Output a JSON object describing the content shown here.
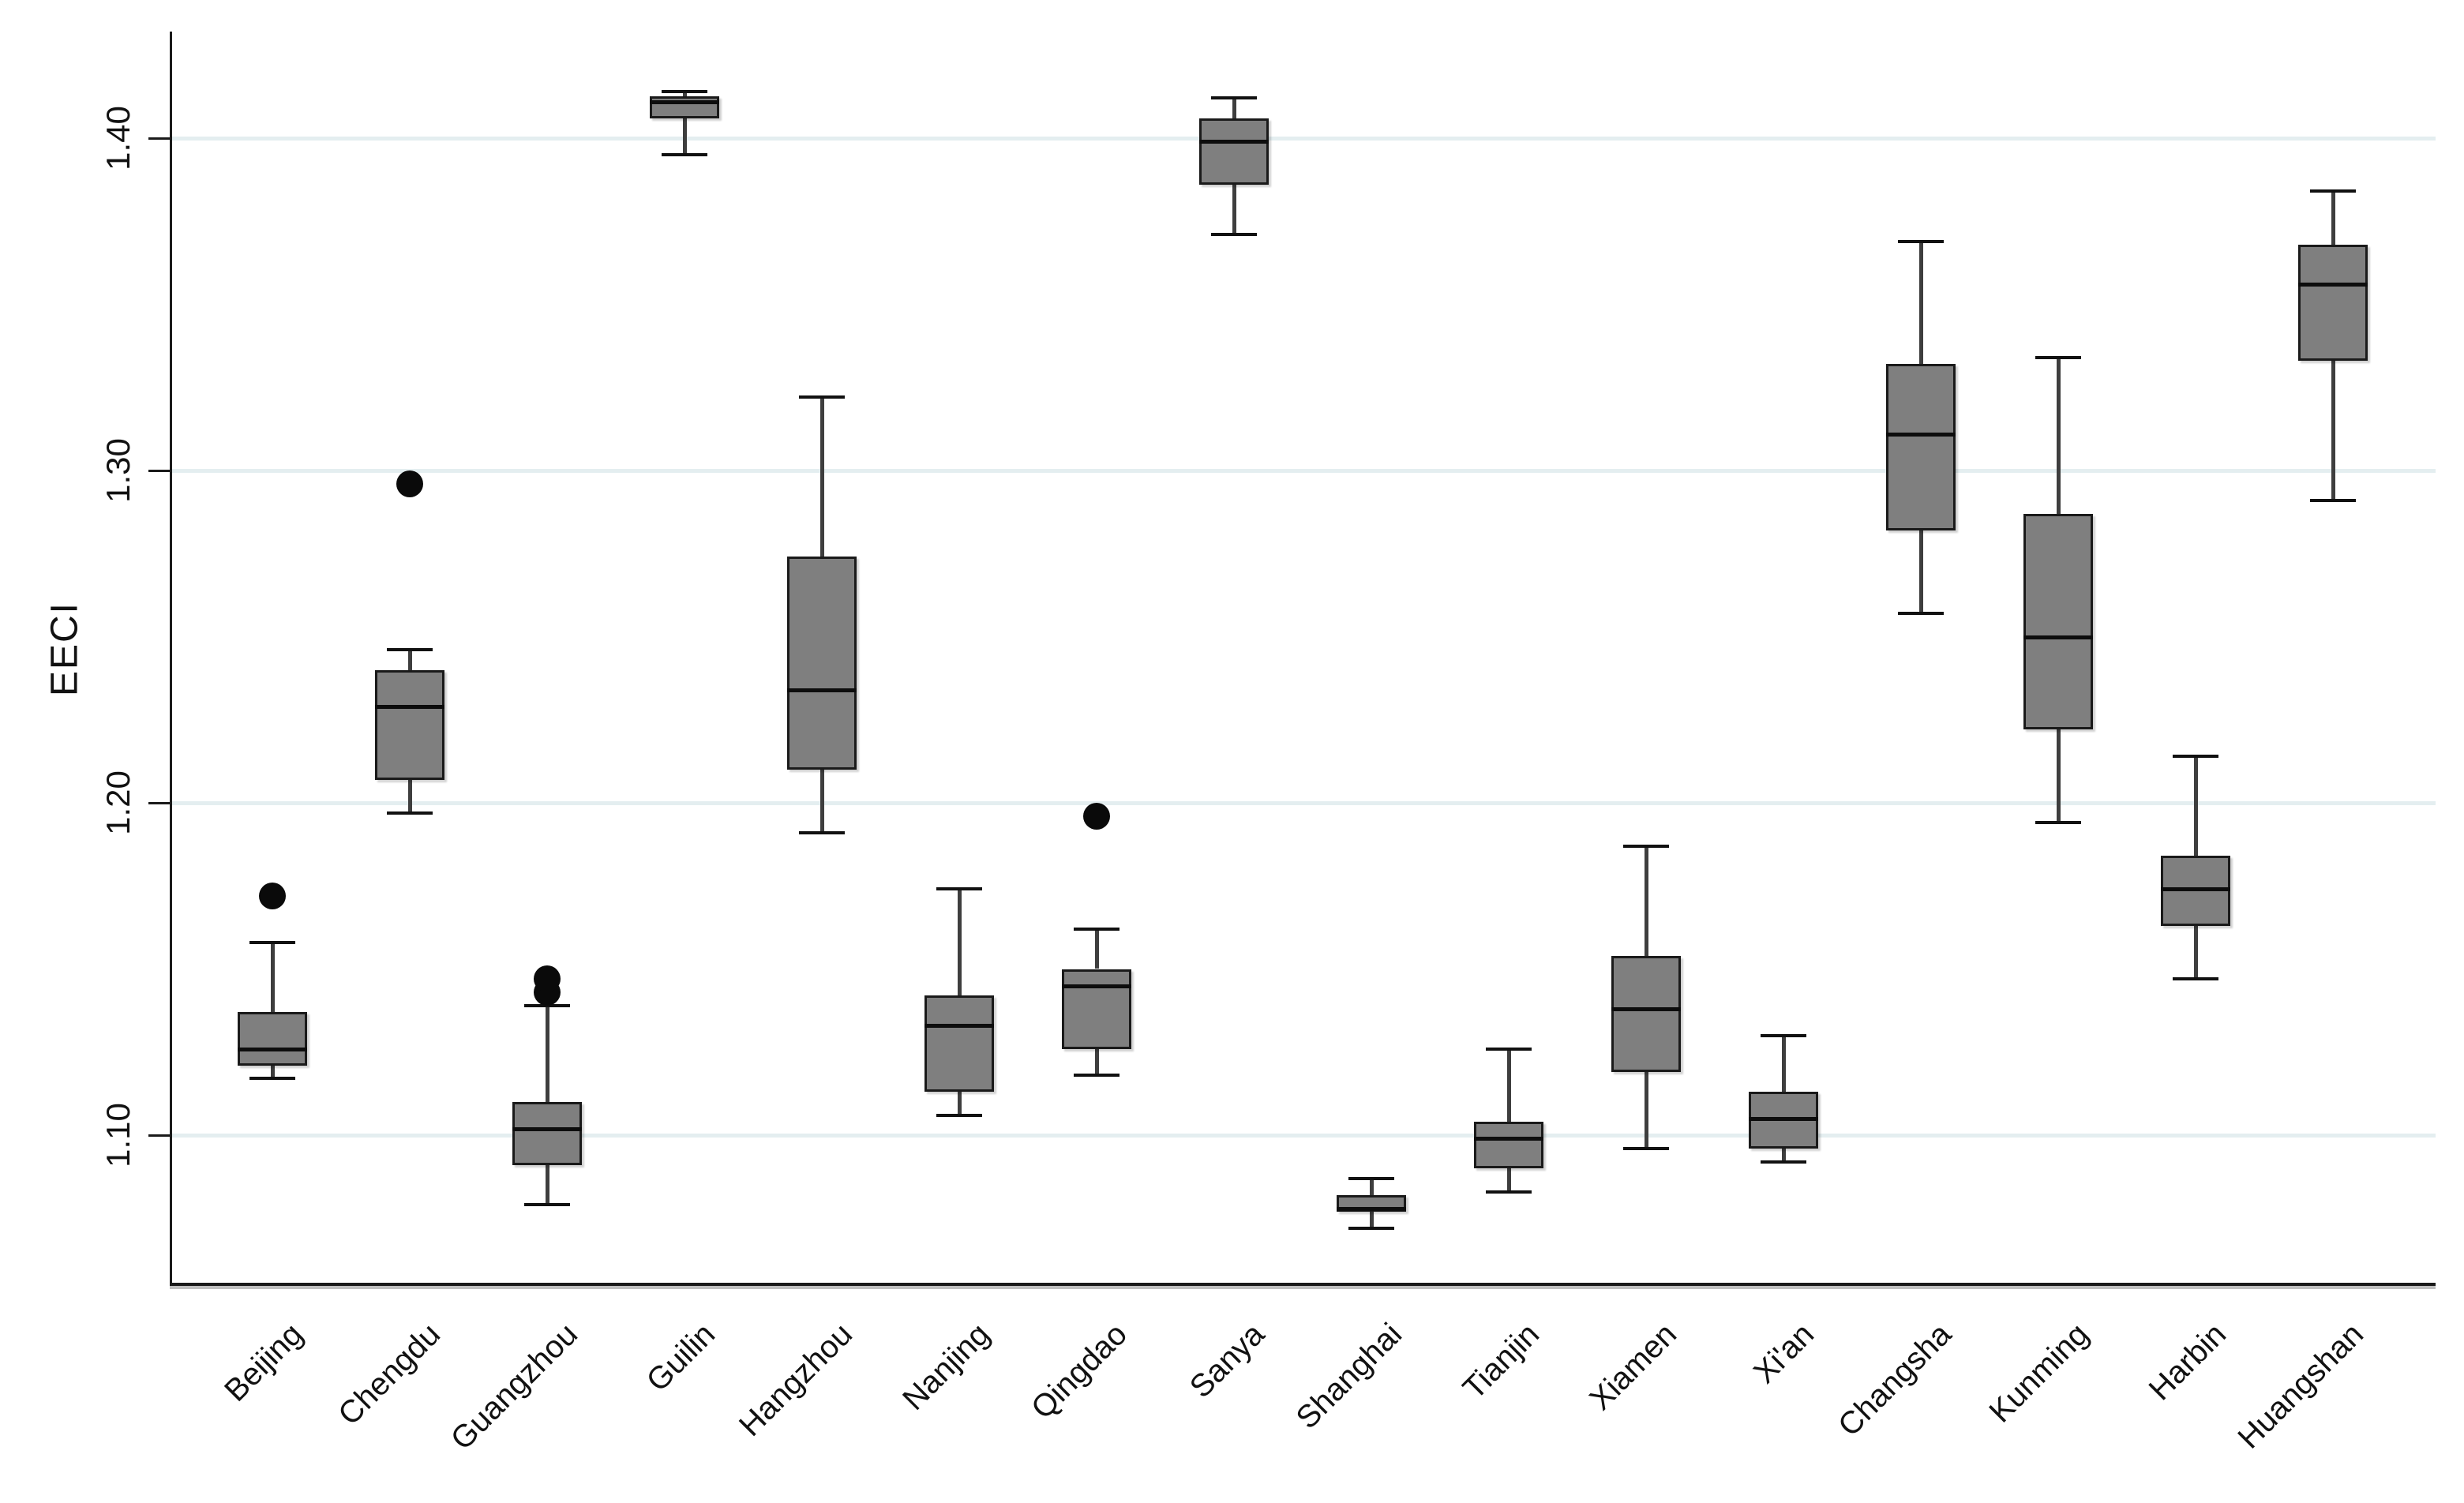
{
  "figure": {
    "background": "#ffffff"
  },
  "chart_data": {
    "type": "box",
    "title": "",
    "xlabel": "",
    "ylabel": "EECI",
    "legend": "none",
    "grid": "horizontal",
    "ylim": [
      1.055,
      1.432
    ],
    "yticks": [
      1.1,
      1.2,
      1.3,
      1.4
    ],
    "ytick_labels": [
      "1.10",
      "1.20",
      "1.30",
      "1.40"
    ],
    "categories": [
      "Beijing",
      "Chengdu",
      "Guangzhou",
      "Guilin",
      "Hangzhou",
      "Nanjing",
      "Qingdao",
      "Sanya",
      "Shanghai",
      "Tianjin",
      "Xiamen",
      "Xi'an",
      "Changsha",
      "Kunming",
      "Harbin",
      "Huangshan"
    ],
    "series": [
      {
        "name": "Beijing",
        "whisker_low": 1.117,
        "q1": 1.121,
        "median": 1.126,
        "q3": 1.137,
        "whisker_high": 1.158,
        "outliers": [
          1.172
        ]
      },
      {
        "name": "Chengdu",
        "whisker_low": 1.197,
        "q1": 1.207,
        "median": 1.229,
        "q3": 1.24,
        "whisker_high": 1.246,
        "outliers": [
          1.296
        ]
      },
      {
        "name": "Guangzhou",
        "whisker_low": 1.079,
        "q1": 1.091,
        "median": 1.102,
        "q3": 1.11,
        "whisker_high": 1.139,
        "outliers": [
          1.143,
          1.147
        ]
      },
      {
        "name": "Guilin",
        "whisker_low": 1.395,
        "q1": 1.406,
        "median": 1.411,
        "q3": 1.4125,
        "whisker_high": 1.414,
        "outliers": []
      },
      {
        "name": "Hangzhou",
        "whisker_low": 1.191,
        "q1": 1.21,
        "median": 1.234,
        "q3": 1.274,
        "whisker_high": 1.322,
        "outliers": []
      },
      {
        "name": "Nanjing",
        "whisker_low": 1.106,
        "q1": 1.113,
        "median": 1.133,
        "q3": 1.142,
        "whisker_high": 1.174,
        "outliers": []
      },
      {
        "name": "Qingdao",
        "whisker_low": 1.118,
        "q1": 1.126,
        "median": 1.145,
        "q3": 1.15,
        "whisker_high": 1.162,
        "outliers": [
          1.196
        ]
      },
      {
        "name": "Sanya",
        "whisker_low": 1.371,
        "q1": 1.386,
        "median": 1.399,
        "q3": 1.406,
        "whisker_high": 1.412,
        "outliers": []
      },
      {
        "name": "Shanghai",
        "whisker_low": 1.072,
        "q1": 1.077,
        "median": 1.078,
        "q3": 1.082,
        "whisker_high": 1.087,
        "outliers": []
      },
      {
        "name": "Tianjin",
        "whisker_low": 1.083,
        "q1": 1.09,
        "median": 1.099,
        "q3": 1.104,
        "whisker_high": 1.126,
        "outliers": []
      },
      {
        "name": "Xiamen",
        "whisker_low": 1.096,
        "q1": 1.119,
        "median": 1.138,
        "q3": 1.154,
        "whisker_high": 1.187,
        "outliers": []
      },
      {
        "name": "Xi'an",
        "whisker_low": 1.092,
        "q1": 1.096,
        "median": 1.105,
        "q3": 1.113,
        "whisker_high": 1.13,
        "outliers": []
      },
      {
        "name": "Changsha",
        "whisker_low": 1.257,
        "q1": 1.282,
        "median": 1.311,
        "q3": 1.332,
        "whisker_high": 1.369,
        "outliers": []
      },
      {
        "name": "Kunming",
        "whisker_low": 1.194,
        "q1": 1.222,
        "median": 1.25,
        "q3": 1.287,
        "whisker_high": 1.334,
        "outliers": []
      },
      {
        "name": "Harbin",
        "whisker_low": 1.147,
        "q1": 1.163,
        "median": 1.174,
        "q3": 1.184,
        "whisker_high": 1.214,
        "outliers": []
      },
      {
        "name": "Huangshan",
        "whisker_low": 1.291,
        "q1": 1.333,
        "median": 1.356,
        "q3": 1.368,
        "whisker_high": 1.384,
        "outliers": []
      }
    ],
    "box_fill": "#7f7f7f",
    "box_border": "#1a1a1a",
    "median_color": "#0d0d0d",
    "whisker_color": "#3e3e3e",
    "outlier_color": "#0a0a0a",
    "gridline_color": "#e4eef0",
    "axis_color": "#1a1a1a"
  }
}
